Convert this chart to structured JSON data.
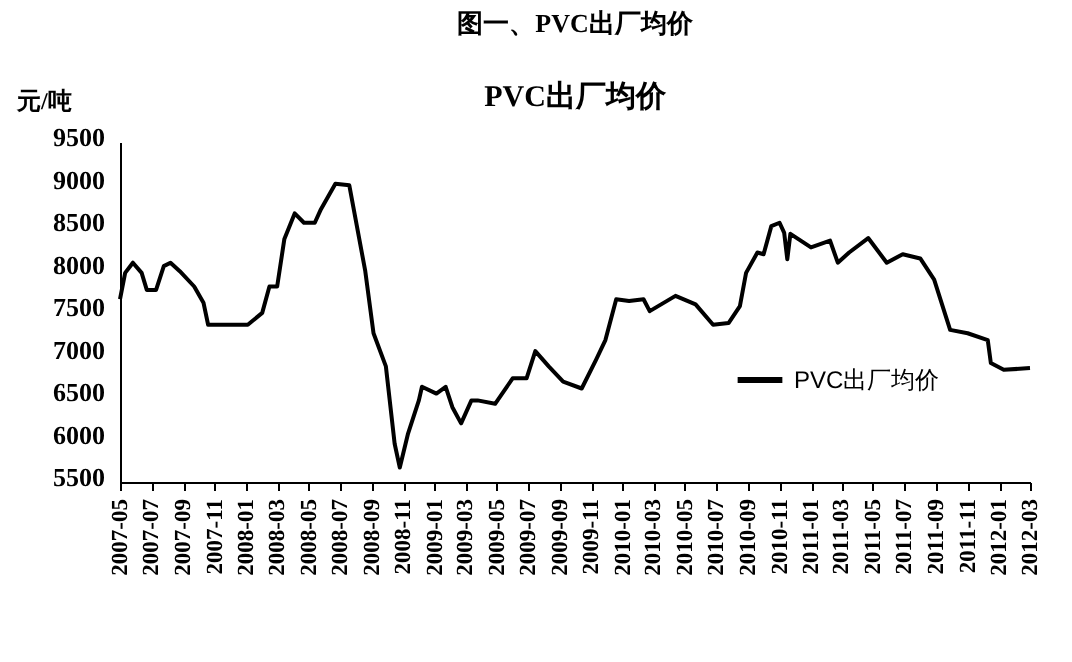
{
  "chart_data": {
    "type": "line",
    "title": "图一、PVC出厂均价",
    "subtitle": "PVC出厂均价",
    "ylabel": "元/吨",
    "x": [
      "2007-05-01",
      "2007-05-11",
      "2007-05-26",
      "2007-06-12",
      "2007-06-22",
      "2007-07-10",
      "2007-07-25",
      "2007-08-07",
      "2007-08-25",
      "2007-09-22",
      "2007-10-10",
      "2007-10-19",
      "2007-11-25",
      "2008-01-04",
      "2008-02-01",
      "2008-02-15",
      "2008-03-01",
      "2008-03-15",
      "2008-04-04",
      "2008-04-22",
      "2008-05-13",
      "2008-05-25",
      "2008-06-22",
      "2008-07-19",
      "2008-08-19",
      "2008-09-04",
      "2008-09-28",
      "2008-10-15",
      "2008-10-25",
      "2008-11-10",
      "2008-12-01",
      "2008-12-07",
      "2009-01-04",
      "2009-01-22",
      "2009-02-04",
      "2009-02-21",
      "2009-03-13",
      "2009-03-25",
      "2009-04-28",
      "2009-06-01",
      "2009-06-28",
      "2009-07-15",
      "2009-08-10",
      "2009-09-07",
      "2009-10-13",
      "2009-11-10",
      "2009-11-28",
      "2009-12-19",
      "2010-01-13",
      "2010-02-10",
      "2010-02-22",
      "2010-04-13",
      "2010-05-22",
      "2010-06-25",
      "2010-07-25",
      "2010-08-16",
      "2010-08-28",
      "2010-09-19",
      "2010-10-01",
      "2010-10-16",
      "2010-11-01",
      "2010-11-10",
      "2010-11-16",
      "2010-11-22",
      "2011-01-01",
      "2011-02-07",
      "2011-02-22",
      "2011-03-16",
      "2011-04-22",
      "2011-05-28",
      "2011-06-28",
      "2011-08-01",
      "2011-08-28",
      "2011-09-28",
      "2011-11-01",
      "2011-12-10",
      "2011-12-16",
      "2012-01-10",
      "2012-03-01"
    ],
    "series": [
      {
        "name": "PVC出厂均价",
        "color": "#000000",
        "values": [
          7650,
          7960,
          8080,
          7960,
          7760,
          7760,
          8040,
          8080,
          7980,
          7800,
          7610,
          7350,
          7350,
          7350,
          7490,
          7800,
          7800,
          8360,
          8660,
          8550,
          8550,
          8710,
          9010,
          8990,
          7980,
          7250,
          6860,
          5950,
          5670,
          6070,
          6460,
          6620,
          6540,
          6620,
          6380,
          6190,
          6460,
          6460,
          6420,
          6720,
          6720,
          7040,
          6860,
          6680,
          6600,
          6940,
          7170,
          7650,
          7630,
          7650,
          7510,
          7690,
          7590,
          7350,
          7370,
          7570,
          7960,
          8200,
          8180,
          8510,
          8550,
          8430,
          8120,
          8420,
          8260,
          8340,
          8080,
          8200,
          8370,
          8080,
          8180,
          8130,
          7880,
          7290,
          7250,
          7170,
          6900,
          6820,
          6840
        ]
      }
    ],
    "xlim": [
      "2007-05",
      "2012-03"
    ],
    "xticks": [
      "2007-05",
      "2007-07",
      "2007-09",
      "2007-11",
      "2008-01",
      "2008-03",
      "2008-05",
      "2008-07",
      "2008-09",
      "2008-11",
      "2009-01",
      "2009-03",
      "2009-05",
      "2009-07",
      "2009-09",
      "2009-11",
      "2010-01",
      "2010-03",
      "2010-05",
      "2010-07",
      "2010-09",
      "2010-11",
      "2011-01",
      "2011-03",
      "2011-05",
      "2011-07",
      "2011-09",
      "2011-11",
      "2012-01",
      "2012-03"
    ],
    "ylim": [
      5500,
      9500
    ],
    "yticks": [
      5500,
      6000,
      6500,
      7000,
      7500,
      8000,
      8500,
      9000,
      9500
    ],
    "legend": "bottom right",
    "grid": false,
    "marker": "none",
    "line_style": "solid"
  }
}
